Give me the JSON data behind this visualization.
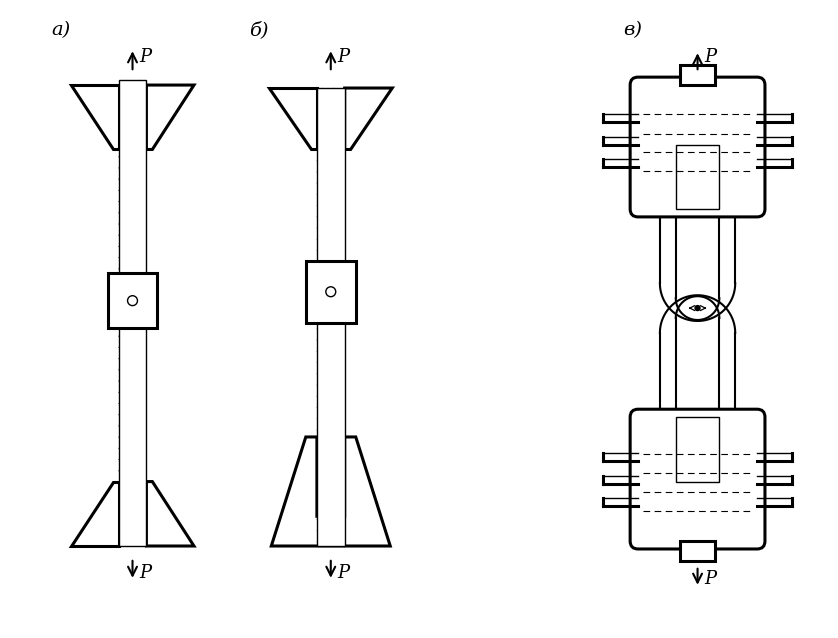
{
  "bg_color": "#ffffff",
  "line_color": "#000000",
  "label_a": "а)",
  "label_b": "б)",
  "label_v": "в)",
  "force_label": "P",
  "fig_width": 8.38,
  "fig_height": 6.38,
  "dpi": 100
}
